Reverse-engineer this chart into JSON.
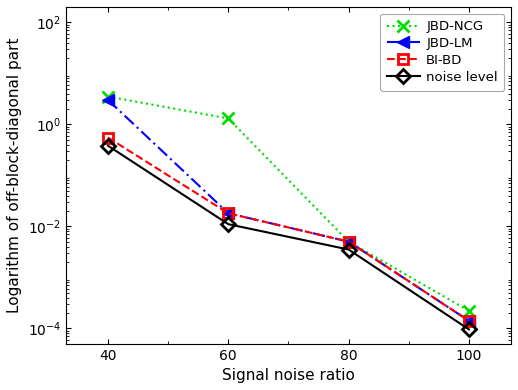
{
  "x": [
    40,
    60,
    80,
    100
  ],
  "JBD_NCG": [
    3.5,
    1.3,
    0.005,
    0.00022
  ],
  "JBD_LM": [
    3.0,
    0.018,
    0.005,
    0.00014
  ],
  "BI_BD": [
    0.55,
    0.018,
    0.005,
    0.00014
  ],
  "noise_level": [
    0.38,
    0.011,
    0.0035,
    9.5e-05
  ],
  "xlabel": "Signal noise ratio",
  "ylabel": "Logarithm of off-block-diagonal part",
  "xlim": [
    33,
    107
  ],
  "ylim_log": [
    5e-05,
    200.0
  ],
  "yticks": [
    0.0001,
    0.01,
    1.0,
    100.0
  ],
  "xticks": [
    40,
    60,
    80,
    100
  ],
  "legend_labels": [
    "JBD-NCG",
    "JBD-LM",
    "BI-BD",
    "noise level"
  ],
  "colors": [
    "#00dd00",
    "#0000ff",
    "#ff0000",
    "#000000"
  ],
  "bg_color": "#ffffff"
}
